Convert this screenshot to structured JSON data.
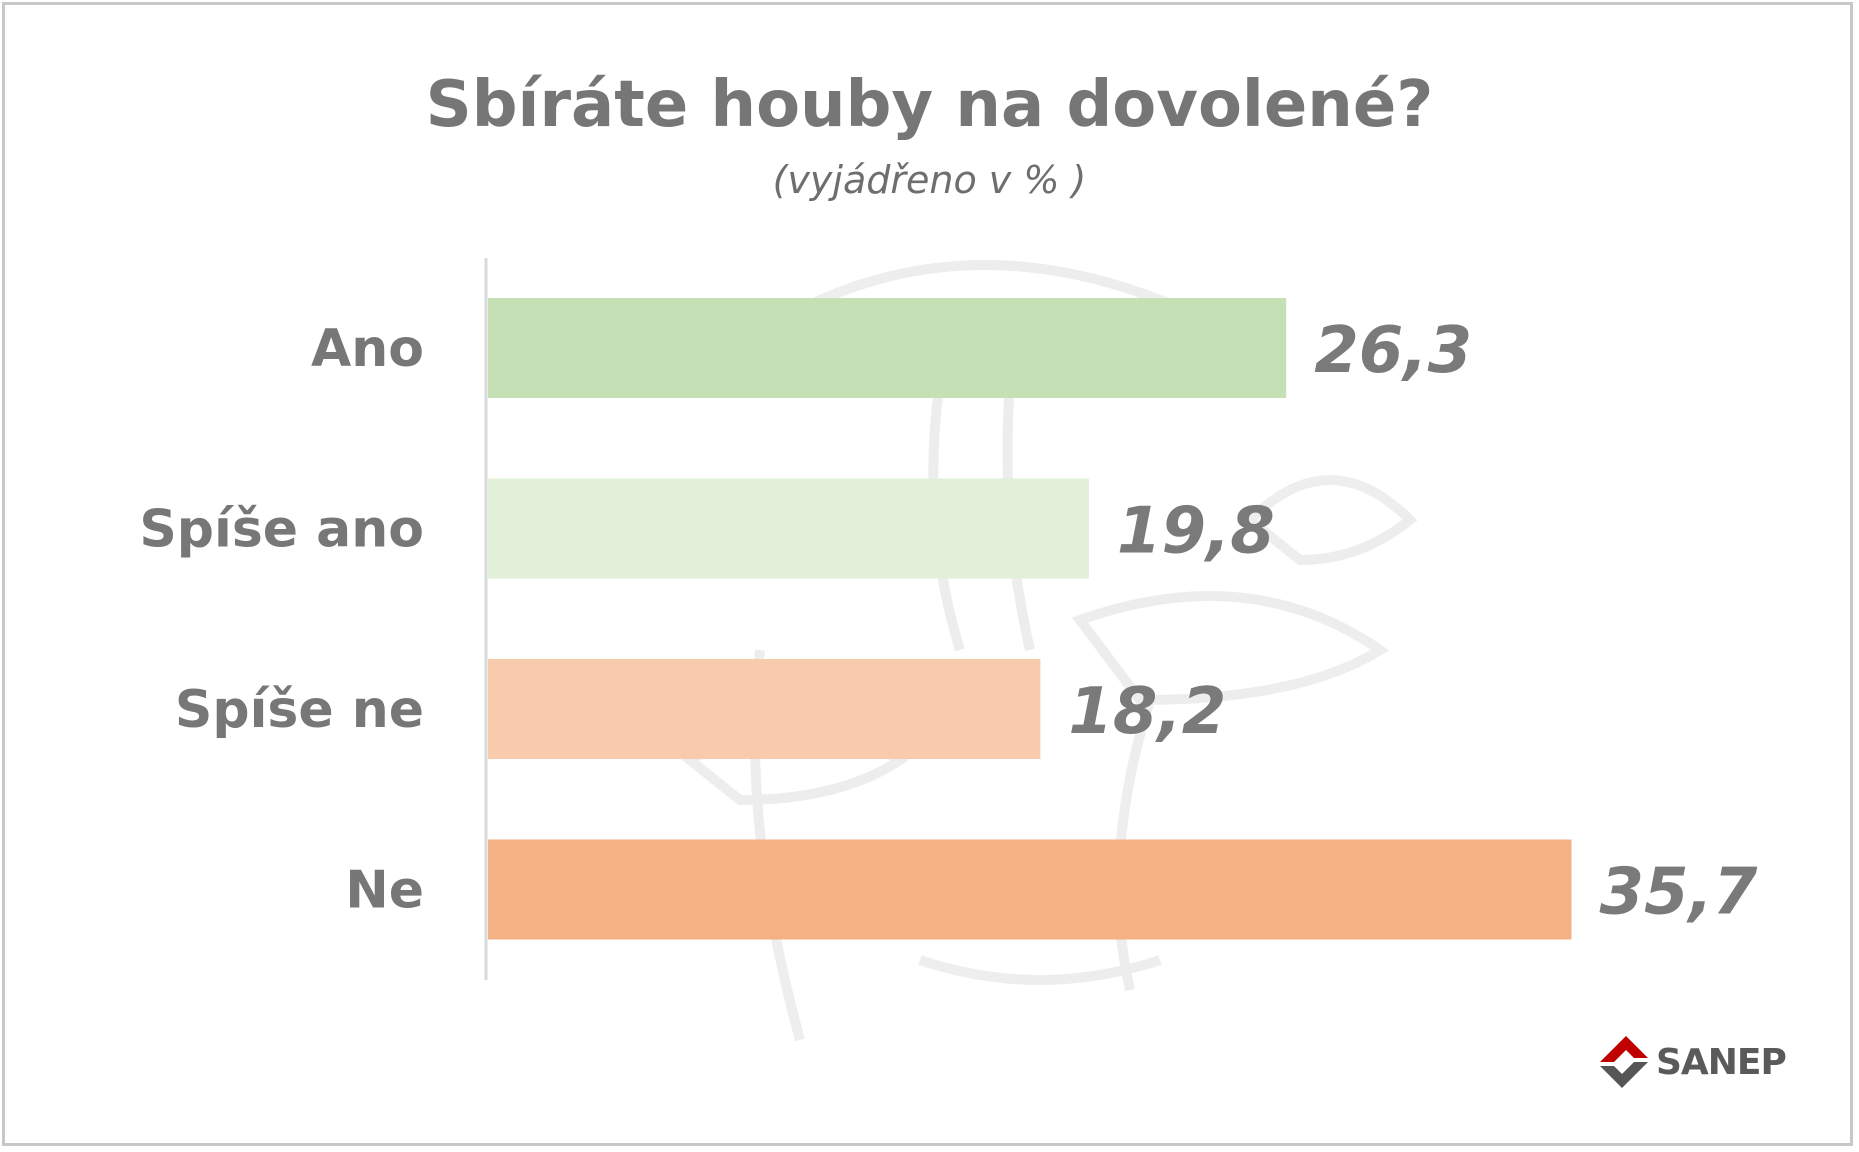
{
  "header": {
    "title": "Sbíráte houby na dovolené?",
    "subtitle": "(vyjádřeno v % )"
  },
  "logo": {
    "text": "SANEP",
    "icon": "sanep-logo-icon"
  },
  "colors": {
    "ano": "#c5e0b4",
    "spise_ano": "#e2f0d9",
    "spise_ne": "#f8cbad",
    "ne": "#f4b183",
    "text": "#777777"
  },
  "chart_data": {
    "type": "bar",
    "orientation": "horizontal",
    "title": "Sbíráte houby na dovolené?",
    "subtitle": "(vyjádřeno v % )",
    "categories": [
      "Ano",
      "Spíše ano",
      "Spíše ne",
      "Ne"
    ],
    "values": [
      26.3,
      19.8,
      18.2,
      35.7
    ],
    "value_labels": [
      "26,3",
      "19,8",
      "18,2",
      "35,7"
    ],
    "xlim": [
      0,
      40
    ],
    "grid": false,
    "legend": "none"
  }
}
